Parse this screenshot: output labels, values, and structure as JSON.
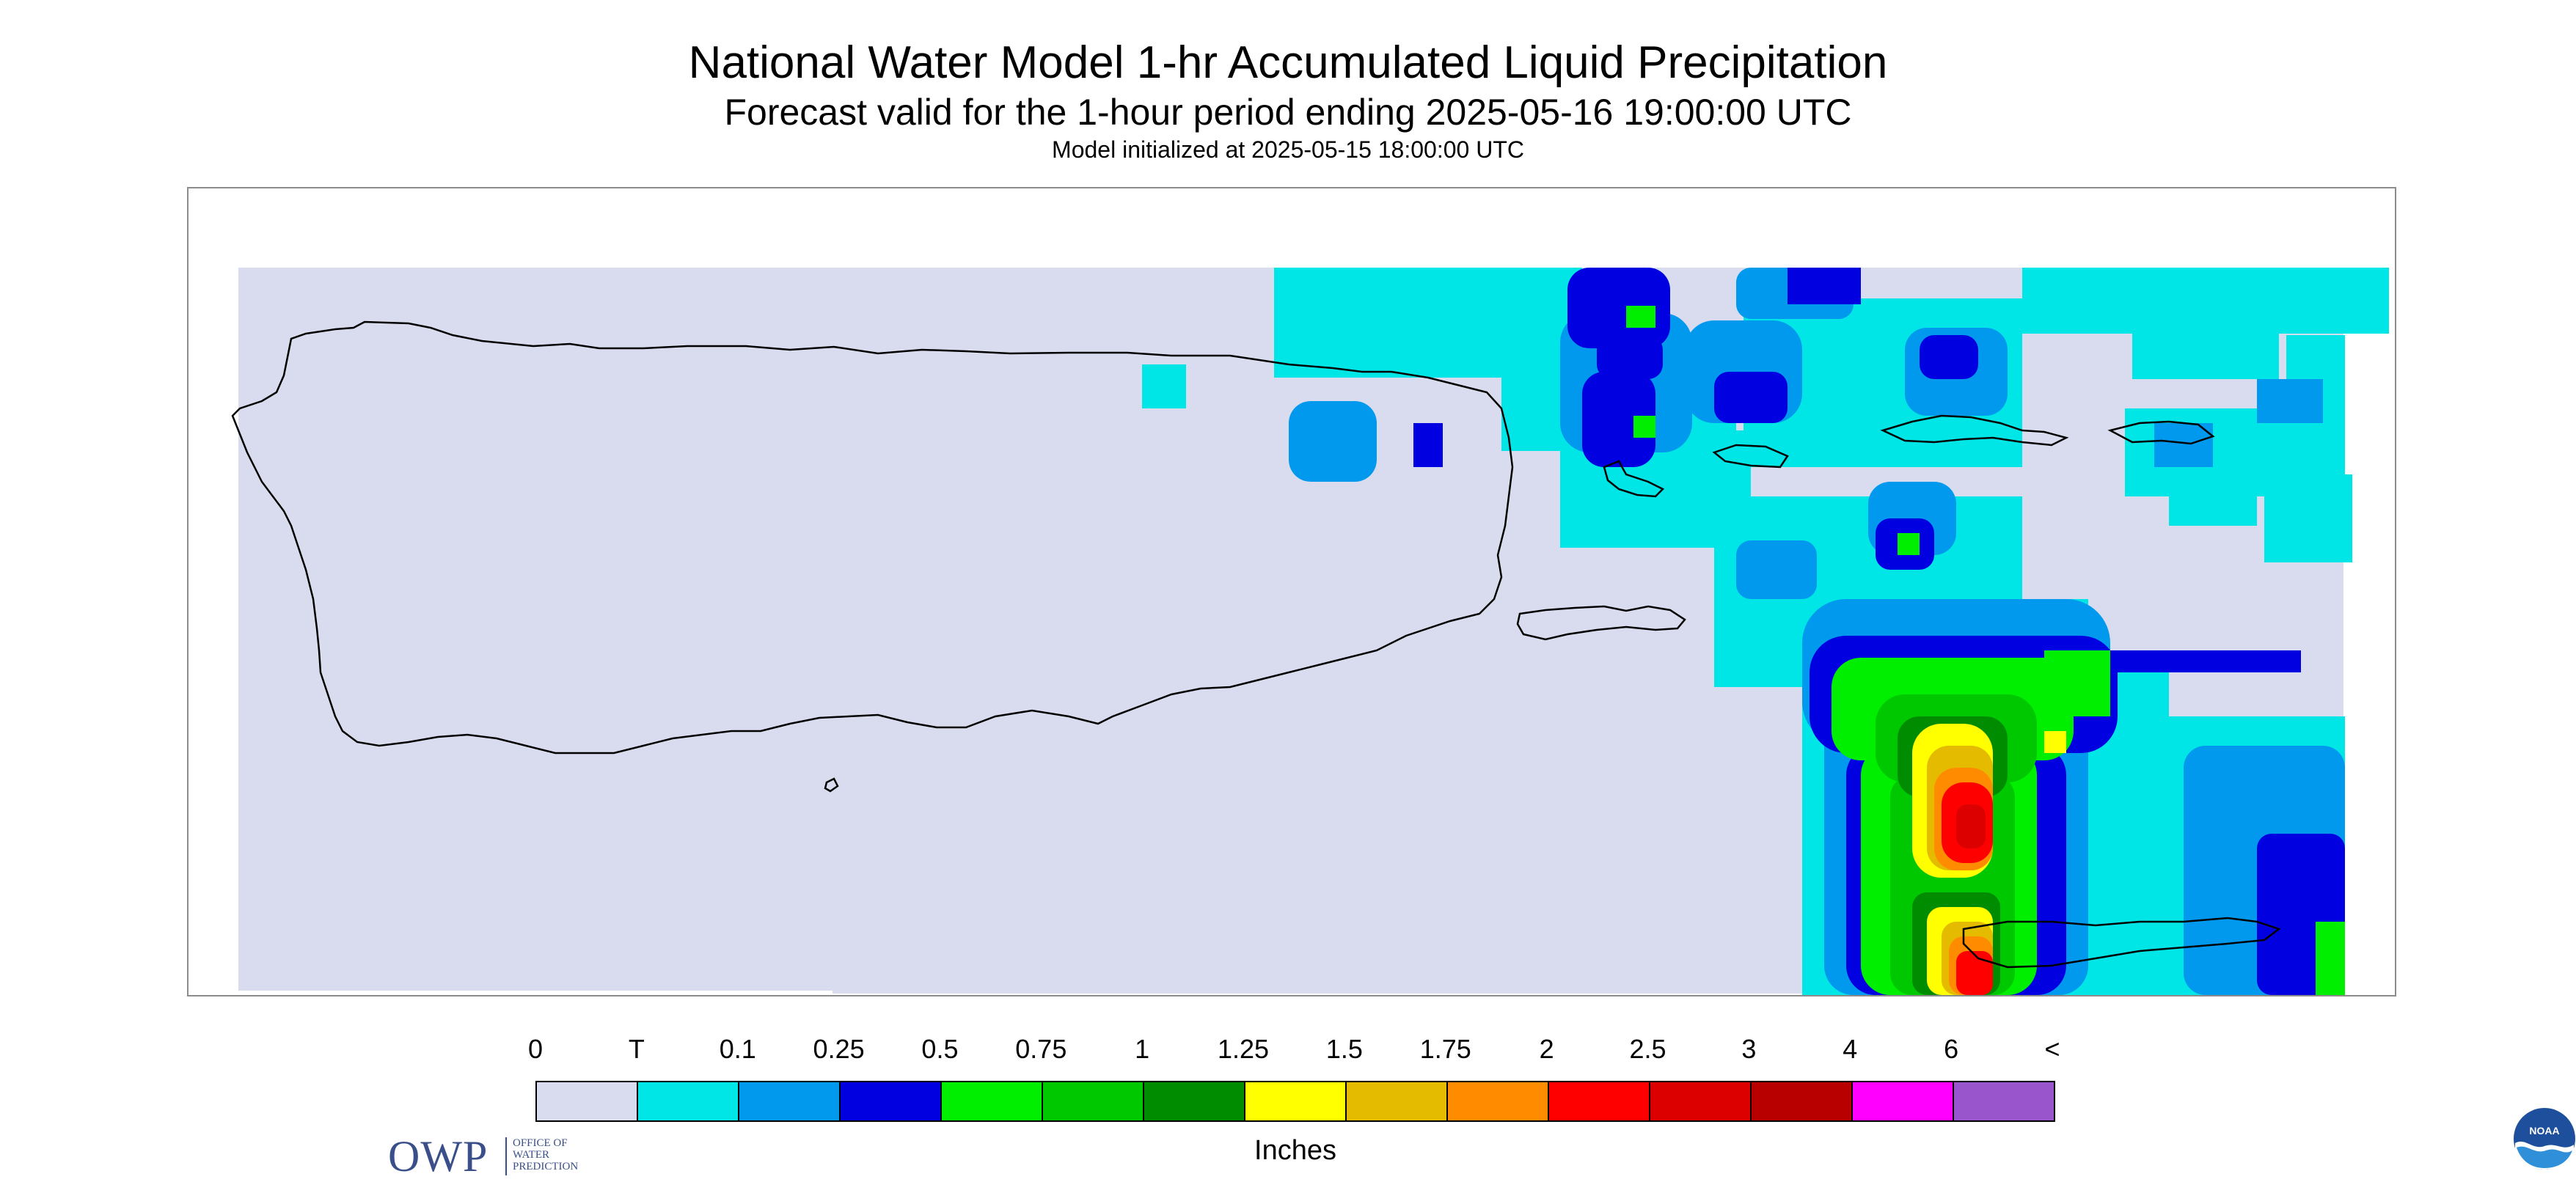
{
  "header": {
    "title": "National Water Model 1-hr Accumulated Liquid Precipitation",
    "subtitle": "Forecast valid for the 1-hour period ending 2025-05-16 19:00:00 UTC",
    "init": "Model initialized at 2025-05-15 18:00:00 UTC"
  },
  "map": {
    "background_color": "#d9dcee",
    "coastline_color": "#000000",
    "logos": {
      "owp": {
        "big": "OWP",
        "lines": [
          "OFFICE OF",
          "WATER",
          "PREDICTION"
        ]
      },
      "noaa": {
        "label": "NOAA"
      }
    }
  },
  "legend": {
    "labels": [
      "0",
      "T",
      "0.1",
      "0.25",
      "0.5",
      "0.75",
      "1",
      "1.25",
      "1.5",
      "1.75",
      "2",
      "2.5",
      "3",
      "4",
      "6",
      "<"
    ],
    "colors": [
      "#d9dcee",
      "#00e5e5",
      "#0099ee",
      "#0000e0",
      "#00ee00",
      "#00c800",
      "#008c00",
      "#ffff00",
      "#e5bb00",
      "#ff8c00",
      "#ff0000",
      "#dd0000",
      "#b80000",
      "#ff00ff",
      "#9955cc"
    ],
    "units": "Inches"
  }
}
